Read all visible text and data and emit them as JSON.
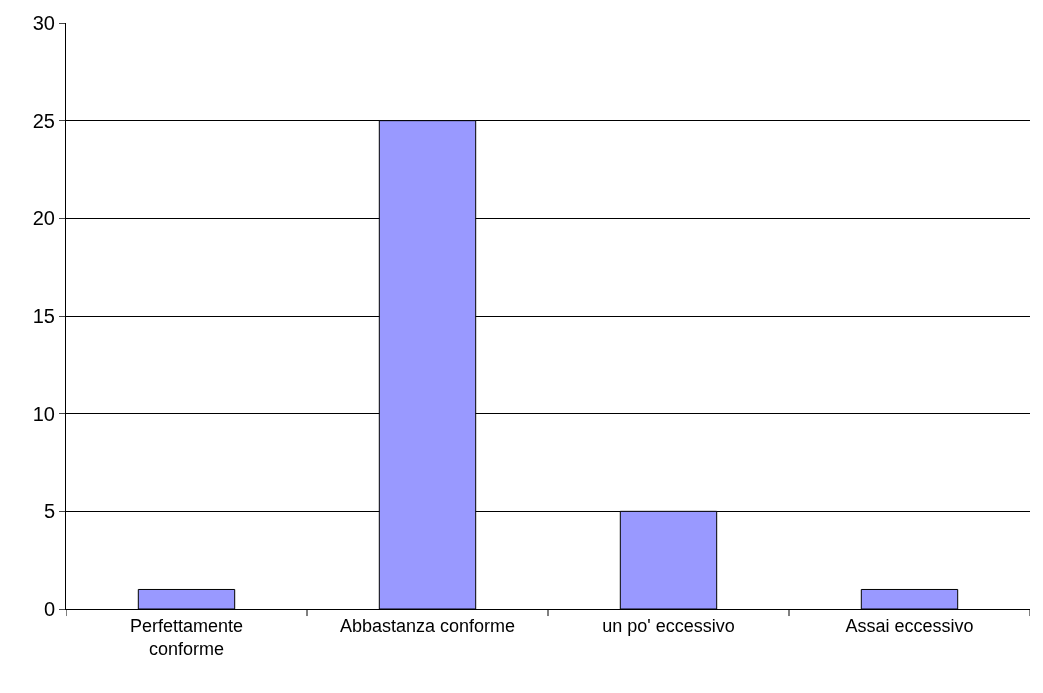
{
  "chart_data": {
    "type": "bar",
    "categories": [
      "Perfettamente\nconforme",
      "Abbastanza conforme",
      "un po' eccessivo",
      "Assai eccessivo"
    ],
    "values": [
      1,
      25,
      5,
      1
    ],
    "color": "#9999ff",
    "ylim": [
      0,
      30
    ],
    "yticks": [
      0,
      5,
      10,
      15,
      20,
      25,
      30
    ],
    "grid": "y"
  }
}
